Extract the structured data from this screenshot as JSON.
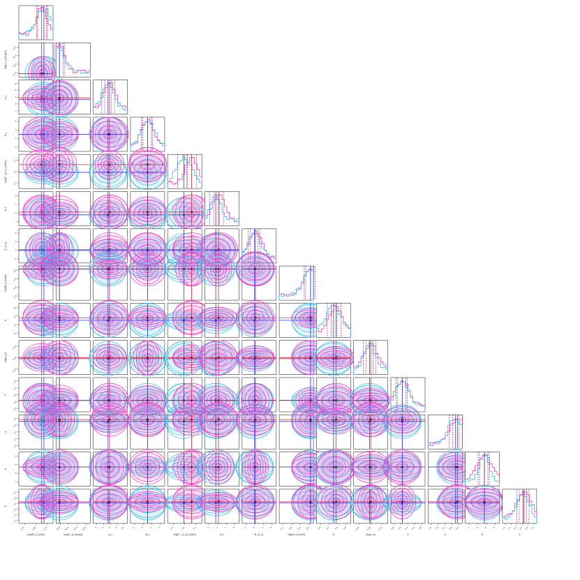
{
  "colors": {
    "magenta": "#ff33cc",
    "cyan": "#33bbee",
    "red_line": "#e8202a",
    "blue_line": "#3333dd",
    "axis": "#333333"
  },
  "chart_data": {
    "type": "corner",
    "series": [
      {
        "color": "magenta"
      },
      {
        "color": "cyan"
      }
    ],
    "parameters": [
      {
        "label": "log(B_L) [rad]",
        "range": [
          -1.8,
          -1.5
        ],
        "ticks": [
          "-1.75",
          "-1.65",
          "-1.55"
        ],
        "truth_red": -1.6,
        "truth_blue": -1.58
      },
      {
        "label": "log(L'_j) [erg/s]",
        "range": [
          51.4,
          52.9
        ],
        "ticks": [
          "51.6",
          "52.0",
          "52.4",
          "52.8"
        ],
        "truth_red": 51.55,
        "truth_blue": 51.55
      },
      {
        "label": "e_j",
        "range": [
          1,
          10
        ],
        "ticks": [
          "2",
          "4",
          "6",
          "8",
          "10"
        ],
        "truth_red": 5.3,
        "truth_blue": 4.9
      },
      {
        "label": "β_j",
        "range": [
          -3,
          4
        ],
        "ticks": [
          "-2",
          "0",
          "2",
          "4"
        ],
        "truth_red": 0.5,
        "truth_blue": 0.5
      },
      {
        "label": "log(Γ'_{c,j}) [keV]",
        "range": [
          2.0,
          4.0
        ],
        "ticks": [
          "2.5",
          "3.0",
          "3.5"
        ],
        "truth_red": 3.4,
        "truth_blue": 2.95
      },
      {
        "label": "θ_c",
        "range": [
          0,
          5
        ],
        "ticks": [
          "1",
          "2",
          "3",
          "4"
        ],
        "truth_red": 2.0,
        "truth_blue": 1.6
      },
      {
        "label": "β_{c,j}",
        "range": [
          -3,
          6
        ],
        "ticks": [
          "-2",
          "0",
          "2",
          "4"
        ],
        "truth_red": 0.5,
        "truth_blue": 0.3
      },
      {
        "label": "log(θ_v) [rad]",
        "range": [
          -1.3,
          0.1
        ],
        "ticks": [
          "-1.2",
          "-0.8",
          "-0.4",
          "0.0"
        ],
        "truth_red": -0.02,
        "truth_blue": -0.02
      },
      {
        "label": "A",
        "range": [
          2.8,
          4.8
        ],
        "ticks": [
          "3.6",
          "4.0",
          "4.4",
          "4.8"
        ],
        "truth_red": 3.95,
        "truth_blue": 3.8
      },
      {
        "label": "log(ε_e)",
        "range": [
          -0.3,
          0.3
        ],
        "ticks": [
          "-0.20",
          "0.00",
          "0.15"
        ],
        "truth_red": 0.0,
        "truth_blue": -0.02
      },
      {
        "label": "Y",
        "range": [
          -0.9,
          0.9
        ],
        "ticks": [
          "-0.8",
          "-0.4",
          "0.0",
          "0.4",
          "0.8"
        ],
        "truth_red": -0.3,
        "truth_blue": -0.3
      },
      {
        "label": "a",
        "range": [
          1.4,
          5.0
        ],
        "ticks": [
          "1.6",
          "2.4",
          "3.2",
          "4.0",
          "4.8"
        ],
        "truth_red": 4.5,
        "truth_blue": 4.3
      },
      {
        "label": "b",
        "range": [
          0,
          10
        ],
        "ticks": [
          "2",
          "4",
          "6",
          "8"
        ],
        "truth_red": 5.6,
        "truth_blue": 5.6
      },
      {
        "label": "Σ",
        "range": [
          0.8,
          3.8
        ],
        "ticks": [
          "1.0",
          "1.5",
          "2.0",
          "2.5",
          "3.0",
          "3.5"
        ],
        "truth_red": 2.7,
        "truth_blue": 2.6
      }
    ]
  }
}
